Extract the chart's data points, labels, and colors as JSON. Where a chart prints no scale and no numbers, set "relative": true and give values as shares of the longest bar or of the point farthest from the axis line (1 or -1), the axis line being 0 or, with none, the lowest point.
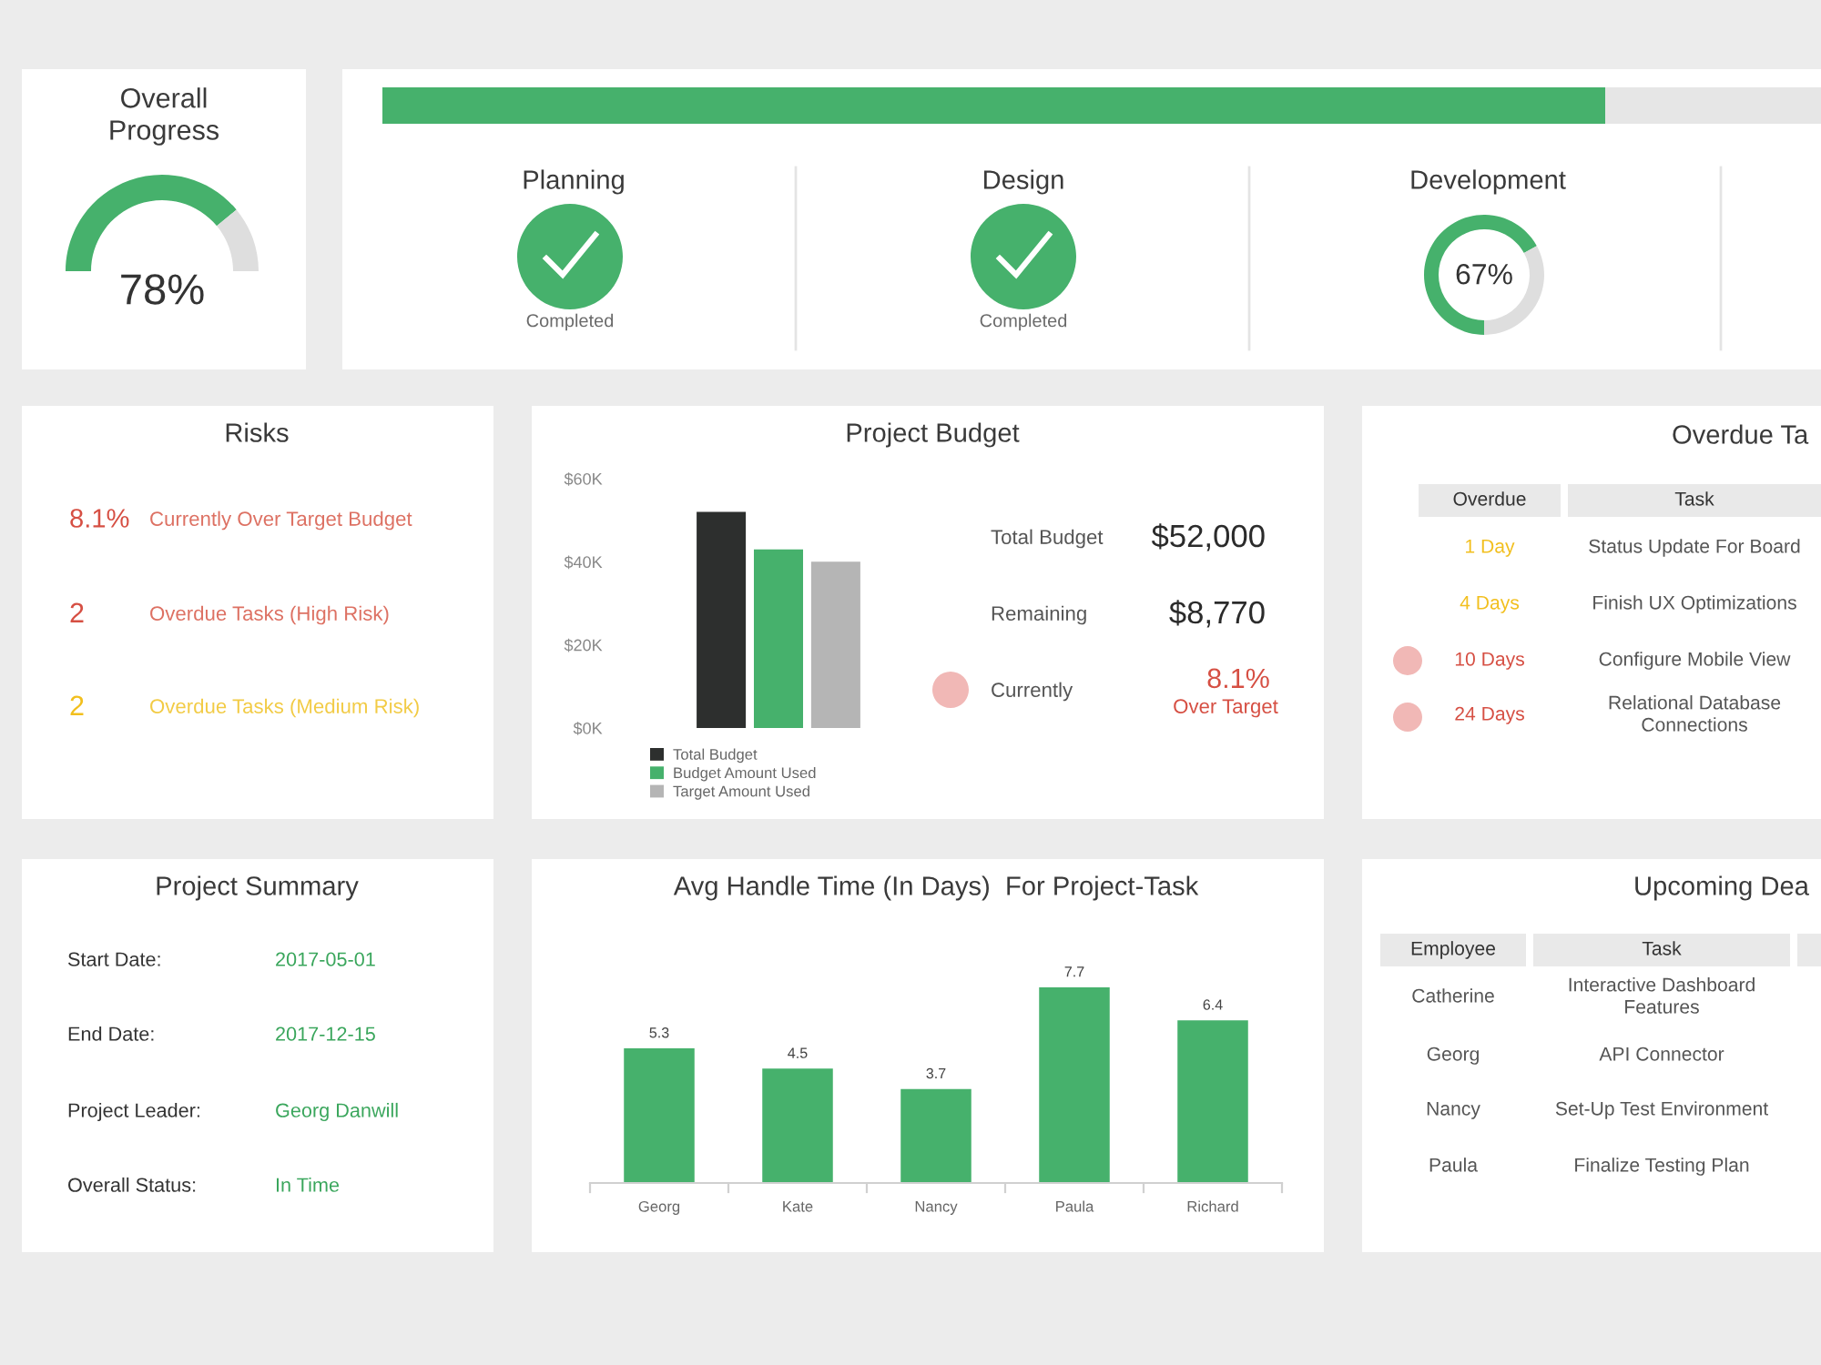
{
  "chart_data": [
    {
      "type": "donut",
      "title": "Overall Progress",
      "categories": [
        null,
        null
      ],
      "values": [
        78,
        22
      ],
      "colors": [
        "#46b16c",
        "#dedede"
      ],
      "annotations": [
        "78%"
      ]
    },
    {
      "type": "bar",
      "orientation": "horizontal",
      "stacked": true,
      "relative": true,
      "tick_labels": false,
      "categories": [
        null
      ],
      "series": [
        {
          "color": "#46b16c",
          "values": [
            0.85
          ]
        },
        {
          "color": "#e6e6e6",
          "values": [
            0.15
          ]
        }
      ]
    },
    {
      "type": "other",
      "title": "Planning",
      "annotations": [
        "Completed"
      ]
    },
    {
      "type": "other",
      "title": "Design",
      "annotations": [
        "Completed"
      ]
    },
    {
      "type": "donut",
      "title": "Development",
      "categories": [
        null,
        null
      ],
      "values": [
        67,
        33
      ],
      "colors": [
        "#46b16c",
        "#dedede"
      ],
      "annotations": [
        "67%"
      ]
    },
    {
      "type": "other",
      "title": "Risks",
      "annotations": [
        "8.1%",
        "Currently Over Target Budget",
        "2",
        "Overdue Tasks (High Risk)",
        "2",
        "Overdue Tasks (Medium Risk)"
      ]
    },
    {
      "type": "bar",
      "title": "Project Budget",
      "categories": [
        null
      ],
      "tick_labels": "y",
      "series": [
        {
          "name": "Total Budget",
          "color": "#2d2f2e",
          "values": [
            52000
          ]
        },
        {
          "name": "Budget Amount Used",
          "color": "#46b16c",
          "values": [
            43000
          ]
        },
        {
          "name": "Target Amount Used",
          "color": "#b5b5b5",
          "values": [
            40000
          ]
        }
      ],
      "ylim": [
        0,
        60000
      ],
      "yticks": [
        {
          "value": 0,
          "label": "$0K"
        },
        {
          "value": 20000,
          "label": "$20K"
        },
        {
          "value": 40000,
          "label": "$40K"
        },
        {
          "value": 60000,
          "label": "$60K"
        }
      ],
      "legend": "bottom",
      "annotations": [
        "Total Budget",
        "$52,000",
        "Remaining",
        "$8,770",
        "Currently",
        "8.1%",
        "Over Target"
      ]
    },
    {
      "type": "other",
      "title": "Overdue Ta",
      "annotations": [
        "Overdue",
        "Task",
        "1 Day",
        "Status Update For Board",
        "4 Days",
        "Finish UX Optimizations",
        "10 Days",
        "Configure Mobile View",
        "24 Days",
        "Relational Database Connections"
      ]
    },
    {
      "type": "other",
      "title": "Project Summary",
      "annotations": [
        "Start Date:",
        "2017-05-01",
        "End Date:",
        "2017-12-15",
        "Project Leader:",
        "Georg Danwill",
        "Overall Status:",
        "In Time"
      ]
    },
    {
      "type": "bar",
      "title": "Avg Handle Time (In Days)  For Project-Task",
      "categories": [
        "Georg",
        "Kate",
        "Nancy",
        "Paula",
        "Richard"
      ],
      "values": [
        5.3,
        4.5,
        3.7,
        7.7,
        6.4
      ],
      "color": "#46b16c",
      "data_labels": true,
      "tick_labels": "x"
    },
    {
      "type": "other",
      "title": "Upcoming Dea",
      "annotations": [
        "Employee",
        "Task",
        "Catherine",
        "Interactive Dashboard Features",
        "Georg",
        "API Connector",
        "Nancy",
        "Set-Up Test Environment",
        "Paula",
        "Finalize Testing Plan"
      ]
    }
  ]
}
